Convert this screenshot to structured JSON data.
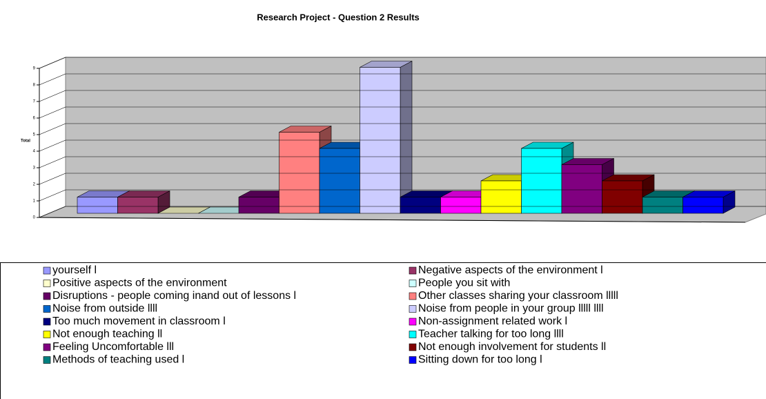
{
  "chart_data": {
    "type": "bar3d",
    "title": "Research Project - Question 2 Results",
    "y_label": "Total",
    "ylim": [
      0,
      9
    ],
    "yticks": [
      0,
      1,
      2,
      3,
      4,
      5,
      6,
      7,
      8,
      9
    ],
    "series": [
      {
        "name": "yourself  l",
        "color": "#9999ff",
        "values": [
          1
        ]
      },
      {
        "name": "Negative aspects of the environment l",
        "color": "#993366",
        "values": [
          1
        ]
      },
      {
        "name": "Positive aspects of the environment",
        "color": "#ffffcc",
        "values": [
          0
        ]
      },
      {
        "name": "People you sit with",
        "color": "#ccffff",
        "values": [
          0
        ]
      },
      {
        "name": "Disruptions - people coming inand out of lessons l",
        "color": "#660066",
        "values": [
          1
        ]
      },
      {
        "name": "Other classes sharing your classroom lllll",
        "color": "#ff8080",
        "values": [
          5
        ]
      },
      {
        "name": "Noise from outside llll",
        "color": "#0066cc",
        "values": [
          4
        ]
      },
      {
        "name": "Noise from people in your group lllll llll",
        "color": "#ccccff",
        "values": [
          9
        ]
      },
      {
        "name": "Too much movement in classroom l",
        "color": "#000080",
        "values": [
          1
        ]
      },
      {
        "name": "Non-assignment related work l",
        "color": "#ff00ff",
        "values": [
          1
        ]
      },
      {
        "name": "Not enough teaching ll",
        "color": "#ffff00",
        "values": [
          2
        ]
      },
      {
        "name": "Teacher talking for too long llll",
        "color": "#00ffff",
        "values": [
          4
        ]
      },
      {
        "name": "Feeling Uncomfortable lll",
        "color": "#800080",
        "values": [
          3
        ]
      },
      {
        "name": "Not enough involvement for students ll",
        "color": "#800000",
        "values": [
          2
        ]
      },
      {
        "name": "Methods of teaching used l",
        "color": "#008080",
        "values": [
          1
        ]
      },
      {
        "name": "Sitting down for too long l",
        "color": "#0000ff",
        "values": [
          1
        ]
      }
    ]
  }
}
